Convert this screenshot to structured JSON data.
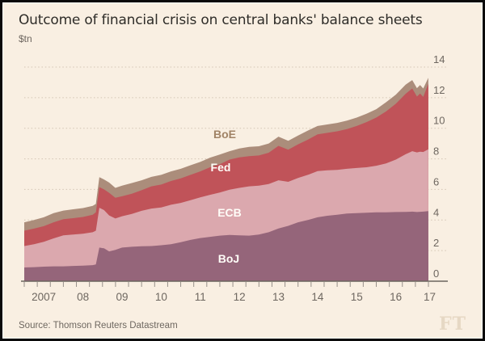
{
  "chart_data": {
    "type": "area",
    "stacked": true,
    "title": "Outcome of financial crisis on central banks' balance sheets",
    "unit": "$tn",
    "source": "Source: Thomson Reuters Datastream",
    "brand": "FT",
    "background_color": "#f9efe2",
    "x": [
      2007.0,
      2007.25,
      2007.5,
      2007.75,
      2008.0,
      2008.25,
      2008.5,
      2008.75,
      2008.83,
      2008.92,
      2009.04,
      2009.17,
      2009.33,
      2009.5,
      2009.75,
      2010.0,
      2010.25,
      2010.5,
      2010.75,
      2011.0,
      2011.25,
      2011.5,
      2011.75,
      2012.0,
      2012.25,
      2012.5,
      2012.75,
      2013.0,
      2013.25,
      2013.5,
      2013.75,
      2014.0,
      2014.25,
      2014.5,
      2014.75,
      2015.0,
      2015.25,
      2015.5,
      2015.75,
      2016.0,
      2016.25,
      2016.5,
      2016.75,
      2016.92,
      2017.04,
      2017.12,
      2017.2,
      2017.33
    ],
    "series": [
      {
        "name": "BoJ",
        "color": "#95657a",
        "label_color": "#fffdf8",
        "values": [
          0.9,
          0.92,
          0.95,
          0.97,
          0.97,
          1.0,
          1.02,
          1.05,
          1.1,
          2.2,
          2.15,
          1.95,
          2.05,
          2.2,
          2.25,
          2.28,
          2.3,
          2.35,
          2.42,
          2.55,
          2.7,
          2.82,
          2.9,
          2.98,
          3.02,
          3.0,
          2.98,
          3.05,
          3.2,
          3.45,
          3.62,
          3.85,
          4.0,
          4.18,
          4.28,
          4.35,
          4.42,
          4.45,
          4.48,
          4.5,
          4.5,
          4.52,
          4.53,
          4.55,
          4.52,
          4.54,
          4.55,
          4.58
        ]
      },
      {
        "name": "ECB",
        "color": "#dba8ae",
        "label_color": "#fffdf8",
        "values": [
          1.4,
          1.5,
          1.63,
          1.83,
          2.03,
          2.05,
          2.08,
          2.15,
          2.2,
          2.6,
          2.5,
          2.35,
          2.05,
          2.05,
          2.15,
          2.32,
          2.45,
          2.47,
          2.58,
          2.57,
          2.6,
          2.66,
          2.75,
          2.82,
          2.96,
          3.1,
          3.22,
          3.2,
          3.15,
          3.15,
          2.88,
          2.9,
          2.95,
          3.02,
          2.97,
          2.93,
          2.93,
          2.95,
          2.97,
          3.05,
          3.2,
          3.43,
          3.77,
          3.95,
          3.9,
          3.93,
          3.9,
          4.04
        ]
      },
      {
        "name": "Fed",
        "color": "#c05359",
        "label_color": "#fffdf8",
        "values": [
          1.0,
          1.02,
          1.02,
          1.05,
          1.05,
          1.07,
          1.1,
          1.15,
          1.2,
          1.35,
          1.35,
          1.48,
          1.35,
          1.3,
          1.32,
          1.35,
          1.45,
          1.5,
          1.55,
          1.6,
          1.65,
          1.7,
          1.8,
          1.85,
          1.97,
          2.0,
          1.98,
          1.97,
          2.05,
          2.25,
          2.1,
          2.2,
          2.3,
          2.4,
          2.45,
          2.52,
          2.6,
          2.75,
          2.95,
          3.15,
          3.4,
          3.65,
          3.95,
          4.1,
          3.65,
          3.8,
          3.6,
          4.28
        ]
      },
      {
        "name": "BoE",
        "color": "#ab8d7b",
        "label_color": "#a18366",
        "values": [
          0.55,
          0.56,
          0.58,
          0.6,
          0.57,
          0.58,
          0.58,
          0.58,
          0.55,
          0.65,
          0.65,
          0.67,
          0.65,
          0.7,
          0.7,
          0.65,
          0.62,
          0.63,
          0.63,
          0.63,
          0.63,
          0.62,
          0.63,
          0.63,
          0.55,
          0.58,
          0.6,
          0.6,
          0.6,
          0.6,
          0.58,
          0.57,
          0.6,
          0.55,
          0.55,
          0.55,
          0.55,
          0.55,
          0.55,
          0.55,
          0.6,
          0.6,
          0.6,
          0.55,
          0.55,
          0.55,
          0.55,
          0.4
        ]
      }
    ],
    "x_axis": {
      "range": [
        2007,
        2017.333
      ],
      "year_labels": [
        "2007",
        "08",
        "09",
        "10",
        "11",
        "12",
        "13",
        "14",
        "15",
        "16",
        "17"
      ],
      "minor_ticks_per_year": 3
    },
    "y_axis": {
      "min": 0,
      "max": 14,
      "step": 2,
      "side": "right",
      "tick_labels": [
        "0",
        "2",
        "4",
        "6",
        "8",
        "10",
        "12",
        "14"
      ],
      "gridline_color": "#d3c5b4",
      "label_color": "#6e6760"
    }
  }
}
